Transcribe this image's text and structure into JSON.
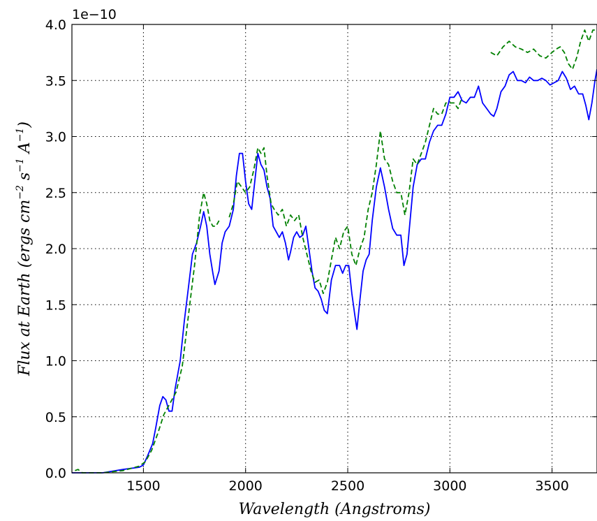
{
  "chart_data": {
    "type": "line",
    "xlabel": "Wavelength (Angstroms)",
    "ylabel_parts": {
      "prefix": "Flux at Earth (ergs cm",
      "exp1": "−2",
      "mid": " s",
      "exp2": "−1",
      "mid2": " A",
      "exp3": "−1",
      "suffix": ")"
    },
    "y_offset_label": "1e−10",
    "xlim": [
      1150,
      3720
    ],
    "ylim": [
      0.0,
      4.0
    ],
    "grid": true,
    "x_ticks": [
      1500,
      2000,
      2500,
      3000,
      3500
    ],
    "y_ticks": [
      0.0,
      0.5,
      1.0,
      1.5,
      2.0,
      2.5,
      3.0,
      3.5,
      4.0
    ],
    "x_tick_labels": [
      "1500",
      "2000",
      "2500",
      "3000",
      "3500"
    ],
    "y_tick_labels": [
      "0.0",
      "0.5",
      "1.0",
      "1.5",
      "2.0",
      "2.5",
      "3.0",
      "3.5",
      "4.0"
    ],
    "series": [
      {
        "color": "#0000ff",
        "style": "solid",
        "segments": [
          [
            [
              1150,
              0.0
            ],
            [
              1200,
              0.0
            ],
            [
              1300,
              0.0
            ],
            [
              1400,
              0.03
            ],
            [
              1480,
              0.05
            ],
            [
              1500,
              0.07
            ],
            [
              1520,
              0.15
            ],
            [
              1545,
              0.26
            ],
            [
              1560,
              0.4
            ],
            [
              1580,
              0.6
            ],
            [
              1595,
              0.68
            ],
            [
              1610,
              0.65
            ],
            [
              1625,
              0.55
            ],
            [
              1640,
              0.55
            ],
            [
              1655,
              0.75
            ],
            [
              1680,
              1.0
            ],
            [
              1700,
              1.35
            ],
            [
              1720,
              1.65
            ],
            [
              1740,
              1.95
            ],
            [
              1760,
              2.05
            ],
            [
              1780,
              2.2
            ],
            [
              1795,
              2.33
            ],
            [
              1810,
              2.2
            ],
            [
              1825,
              1.95
            ],
            [
              1840,
              1.78
            ],
            [
              1850,
              1.68
            ],
            [
              1870,
              1.8
            ],
            [
              1885,
              2.05
            ],
            [
              1900,
              2.15
            ],
            [
              1920,
              2.2
            ],
            [
              1940,
              2.35
            ],
            [
              1955,
              2.65
            ],
            [
              1970,
              2.85
            ],
            [
              1985,
              2.85
            ],
            [
              2000,
              2.6
            ],
            [
              2015,
              2.4
            ],
            [
              2030,
              2.35
            ],
            [
              2045,
              2.6
            ],
            [
              2060,
              2.85
            ],
            [
              2075,
              2.75
            ],
            [
              2090,
              2.7
            ],
            [
              2105,
              2.55
            ],
            [
              2120,
              2.45
            ],
            [
              2135,
              2.2
            ],
            [
              2150,
              2.15
            ],
            [
              2165,
              2.1
            ],
            [
              2180,
              2.15
            ],
            [
              2195,
              2.05
            ],
            [
              2210,
              1.9
            ],
            [
              2220,
              1.97
            ],
            [
              2235,
              2.1
            ],
            [
              2250,
              2.15
            ],
            [
              2265,
              2.1
            ],
            [
              2280,
              2.12
            ],
            [
              2295,
              2.2
            ],
            [
              2310,
              2.0
            ],
            [
              2325,
              1.8
            ],
            [
              2340,
              1.65
            ],
            [
              2355,
              1.62
            ],
            [
              2370,
              1.55
            ],
            [
              2385,
              1.45
            ],
            [
              2400,
              1.42
            ],
            [
              2420,
              1.72
            ],
            [
              2440,
              1.85
            ],
            [
              2460,
              1.85
            ],
            [
              2475,
              1.78
            ],
            [
              2490,
              1.85
            ],
            [
              2505,
              1.85
            ],
            [
              2520,
              1.6
            ],
            [
              2535,
              1.4
            ],
            [
              2545,
              1.28
            ],
            [
              2560,
              1.55
            ],
            [
              2575,
              1.8
            ],
            [
              2590,
              1.9
            ],
            [
              2605,
              1.95
            ],
            [
              2620,
              2.25
            ],
            [
              2640,
              2.55
            ],
            [
              2660,
              2.72
            ],
            [
              2680,
              2.55
            ],
            [
              2700,
              2.35
            ],
            [
              2720,
              2.18
            ],
            [
              2740,
              2.12
            ],
            [
              2760,
              2.12
            ],
            [
              2775,
              1.85
            ],
            [
              2790,
              1.95
            ],
            [
              2805,
              2.25
            ],
            [
              2820,
              2.55
            ],
            [
              2840,
              2.75
            ],
            [
              2860,
              2.8
            ],
            [
              2880,
              2.8
            ],
            [
              2900,
              2.95
            ],
            [
              2920,
              3.05
            ],
            [
              2940,
              3.1
            ],
            [
              2960,
              3.1
            ],
            [
              2980,
              3.2
            ],
            [
              3000,
              3.35
            ],
            [
              3020,
              3.35
            ],
            [
              3040,
              3.4
            ],
            [
              3060,
              3.32
            ],
            [
              3080,
              3.3
            ],
            [
              3100,
              3.35
            ],
            [
              3120,
              3.35
            ],
            [
              3140,
              3.45
            ],
            [
              3160,
              3.3
            ],
            [
              3180,
              3.25
            ],
            [
              3200,
              3.2
            ],
            [
              3215,
              3.18
            ],
            [
              3230,
              3.25
            ],
            [
              3250,
              3.4
            ],
            [
              3270,
              3.45
            ],
            [
              3290,
              3.55
            ],
            [
              3310,
              3.58
            ],
            [
              3330,
              3.5
            ],
            [
              3350,
              3.5
            ],
            [
              3370,
              3.48
            ],
            [
              3390,
              3.53
            ],
            [
              3410,
              3.5
            ],
            [
              3430,
              3.5
            ],
            [
              3450,
              3.52
            ],
            [
              3470,
              3.5
            ],
            [
              3490,
              3.46
            ],
            [
              3510,
              3.48
            ],
            [
              3530,
              3.5
            ],
            [
              3550,
              3.58
            ],
            [
              3570,
              3.52
            ],
            [
              3590,
              3.42
            ],
            [
              3610,
              3.45
            ],
            [
              3630,
              3.38
            ],
            [
              3650,
              3.38
            ],
            [
              3665,
              3.28
            ],
            [
              3680,
              3.15
            ],
            [
              3695,
              3.3
            ],
            [
              3710,
              3.5
            ],
            [
              3720,
              3.6
            ]
          ]
        ]
      },
      {
        "color": "#008000",
        "style": "dashed",
        "segments": [
          [
            [
              1165,
              0.02
            ],
            [
              1180,
              0.03
            ],
            [
              1200,
              0.0
            ],
            [
              1300,
              0.0
            ],
            [
              1400,
              0.02
            ],
            [
              1480,
              0.06
            ],
            [
              1510,
              0.1
            ],
            [
              1540,
              0.2
            ],
            [
              1570,
              0.35
            ],
            [
              1600,
              0.52
            ],
            [
              1630,
              0.62
            ],
            [
              1660,
              0.72
            ],
            [
              1690,
              0.95
            ],
            [
              1720,
              1.4
            ],
            [
              1750,
              1.85
            ],
            [
              1775,
              2.3
            ],
            [
              1795,
              2.5
            ],
            [
              1810,
              2.4
            ],
            [
              1825,
              2.25
            ],
            [
              1840,
              2.2
            ],
            [
              1855,
              2.2
            ],
            [
              1870,
              2.25
            ]
          ],
          [
            [
              1920,
              2.28
            ],
            [
              1940,
              2.4
            ],
            [
              1960,
              2.6
            ],
            [
              1980,
              2.55
            ],
            [
              2000,
              2.5
            ],
            [
              2020,
              2.55
            ],
            [
              2040,
              2.7
            ],
            [
              2060,
              2.9
            ],
            [
              2075,
              2.85
            ],
            [
              2090,
              2.9
            ],
            [
              2105,
              2.65
            ],
            [
              2125,
              2.4
            ],
            [
              2140,
              2.35
            ],
            [
              2160,
              2.3
            ],
            [
              2180,
              2.35
            ],
            [
              2200,
              2.2
            ],
            [
              2220,
              2.3
            ],
            [
              2240,
              2.25
            ],
            [
              2260,
              2.3
            ],
            [
              2280,
              2.1
            ],
            [
              2300,
              1.95
            ],
            [
              2320,
              1.8
            ],
            [
              2340,
              1.7
            ],
            [
              2360,
              1.72
            ],
            [
              2380,
              1.6
            ],
            [
              2400,
              1.7
            ],
            [
              2420,
              1.9
            ],
            [
              2440,
              2.1
            ],
            [
              2460,
              2.0
            ],
            [
              2480,
              2.15
            ],
            [
              2500,
              2.2
            ],
            [
              2520,
              1.95
            ],
            [
              2540,
              1.85
            ],
            [
              2560,
              2.0
            ],
            [
              2580,
              2.1
            ],
            [
              2600,
              2.35
            ],
            [
              2620,
              2.5
            ],
            [
              2640,
              2.75
            ],
            [
              2660,
              3.05
            ],
            [
              2680,
              2.8
            ],
            [
              2700,
              2.75
            ],
            [
              2720,
              2.6
            ],
            [
              2740,
              2.5
            ],
            [
              2760,
              2.5
            ],
            [
              2780,
              2.3
            ],
            [
              2800,
              2.5
            ],
            [
              2820,
              2.8
            ],
            [
              2840,
              2.75
            ],
            [
              2860,
              2.85
            ],
            [
              2880,
              2.95
            ],
            [
              2900,
              3.1
            ],
            [
              2920,
              3.25
            ],
            [
              2940,
              3.2
            ],
            [
              2960,
              3.2
            ],
            [
              2980,
              3.3
            ],
            [
              3000,
              3.3
            ],
            [
              3020,
              3.3
            ],
            [
              3040,
              3.25
            ],
            [
              3060,
              3.35
            ]
          ],
          [
            [
              3200,
              3.75
            ],
            [
              3230,
              3.72
            ],
            [
              3260,
              3.8
            ],
            [
              3290,
              3.85
            ],
            [
              3320,
              3.8
            ],
            [
              3350,
              3.78
            ],
            [
              3380,
              3.75
            ],
            [
              3410,
              3.78
            ],
            [
              3440,
              3.72
            ],
            [
              3470,
              3.7
            ],
            [
              3500,
              3.75
            ],
            [
              3520,
              3.78
            ],
            [
              3540,
              3.8
            ],
            [
              3560,
              3.75
            ],
            [
              3580,
              3.65
            ],
            [
              3600,
              3.6
            ],
            [
              3620,
              3.7
            ],
            [
              3640,
              3.85
            ],
            [
              3660,
              3.95
            ],
            [
              3680,
              3.85
            ],
            [
              3700,
              3.95
            ],
            [
              3720,
              3.95
            ]
          ]
        ]
      }
    ]
  }
}
